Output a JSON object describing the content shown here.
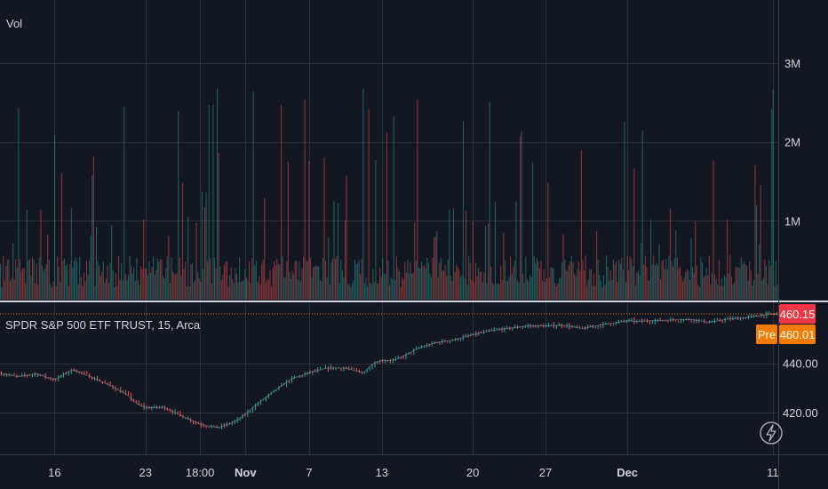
{
  "chart_data": [
    {
      "type": "bar",
      "pane": "volume",
      "title": "Vol",
      "y_ticks": [
        {
          "value": 1000000,
          "label": "1M"
        },
        {
          "value": 2000000,
          "label": "2M"
        },
        {
          "value": 3000000,
          "label": "3M"
        }
      ],
      "ylim": [
        0,
        3800000
      ],
      "bar_count": 560,
      "typical_volume": 450000,
      "colors": {
        "up": "#26a69a",
        "down": "#ef5350"
      },
      "grid": true
    },
    {
      "type": "line",
      "pane": "price",
      "title": "SPDR S&P 500 ETF TRUST, 15, Arca",
      "y_ticks": [
        {
          "value": 420,
          "label": "420.00"
        },
        {
          "value": 440,
          "label": "440.00"
        }
      ],
      "ylim": [
        403,
        464.5
      ],
      "last_price": {
        "value": 460.15,
        "label": "460.15",
        "color": "#f23645"
      },
      "pre_market": {
        "tag": "Pre",
        "value": 460.01,
        "label": "460.01",
        "color": "#f57c00"
      },
      "x_ticks": [
        {
          "label": "16",
          "x": 0.5,
          "bold": false
        },
        {
          "label": "23",
          "x": 5.5,
          "bold": false
        },
        {
          "label": "18:00",
          "x": 8.5,
          "bold": false
        },
        {
          "label": "Nov",
          "x": 11.0,
          "bold": true
        },
        {
          "label": "7",
          "x": 14.5,
          "bold": false
        },
        {
          "label": "13",
          "x": 18.5,
          "bold": false
        },
        {
          "label": "20",
          "x": 23.5,
          "bold": false
        },
        {
          "label": "27",
          "x": 27.5,
          "bold": false
        },
        {
          "label": "Dec",
          "x": 32.0,
          "bold": true
        },
        {
          "label": "11",
          "x": 40.0,
          "bold": false
        }
      ],
      "xlim": [
        -2.5,
        40.3
      ],
      "series": [
        {
          "x": [
            -2.5,
            -1.5,
            -0.5,
            0.5,
            1.5,
            2.5,
            3.5,
            4.5,
            5.0,
            5.5,
            6.5,
            7.5,
            8.5,
            9.5,
            10.5,
            11.0,
            11.5,
            12.5,
            13.5,
            14.5,
            15.5,
            16.5,
            17.5,
            18.0,
            18.5,
            19.0,
            19.5,
            20.5,
            21.5,
            22.5,
            23.5,
            24.5,
            25.5,
            26.5,
            27.5,
            28.5,
            29.5,
            30.5,
            31.5,
            32.0,
            32.5,
            33.5,
            34.5,
            35.5,
            36.5,
            37.5,
            38.5,
            39.5,
            40.3
          ],
          "y": [
            436.0,
            434.6,
            435.8,
            433.3,
            437.6,
            434.5,
            431.2,
            427.2,
            423.7,
            421.9,
            422.2,
            418.6,
            415.2,
            413.8,
            416.6,
            419.3,
            422.6,
            428.3,
            433.6,
            436.2,
            438.1,
            438.1,
            436.1,
            439.9,
            441.2,
            441.2,
            442.1,
            446.2,
            448.5,
            449.6,
            451.6,
            453.3,
            454.3,
            455.2,
            455.2,
            455.6,
            454.1,
            455.6,
            456.7,
            457.4,
            457.1,
            457.4,
            457.7,
            457.9,
            456.7,
            458.0,
            458.6,
            459.7,
            460.15
          ]
        }
      ],
      "grid": true
    }
  ]
}
